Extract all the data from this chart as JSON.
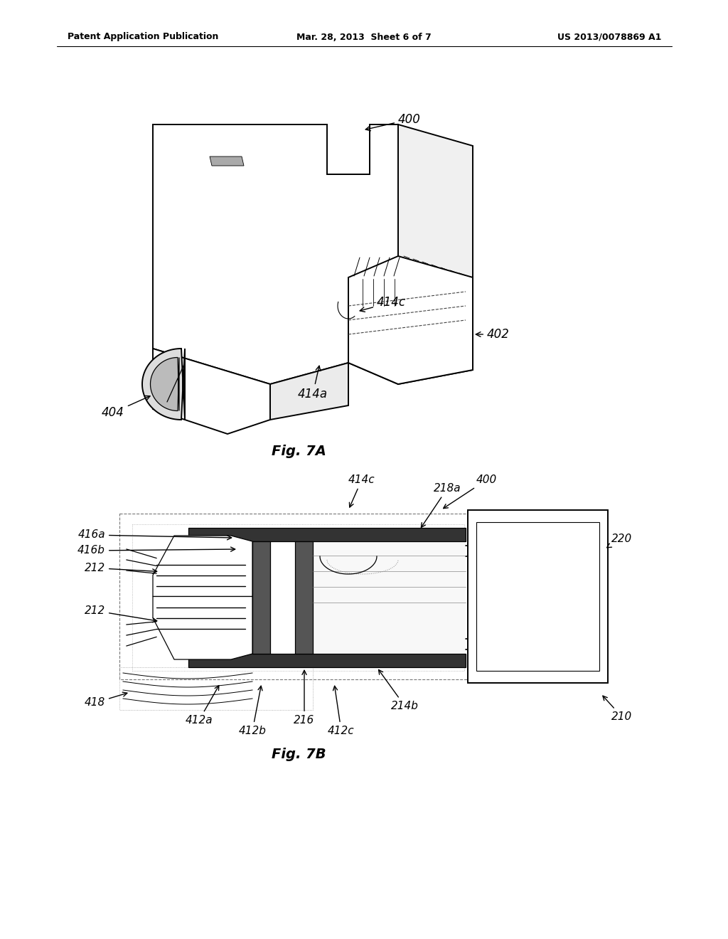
{
  "header_left": "Patent Application Publication",
  "header_mid": "Mar. 28, 2013  Sheet 6 of 7",
  "header_right": "US 2013/0078869 A1",
  "fig7a_label": "Fig. 7A",
  "fig7b_label": "Fig. 7B",
  "bg_color": "#ffffff",
  "lc": "#000000",
  "lc_gray": "#888888"
}
